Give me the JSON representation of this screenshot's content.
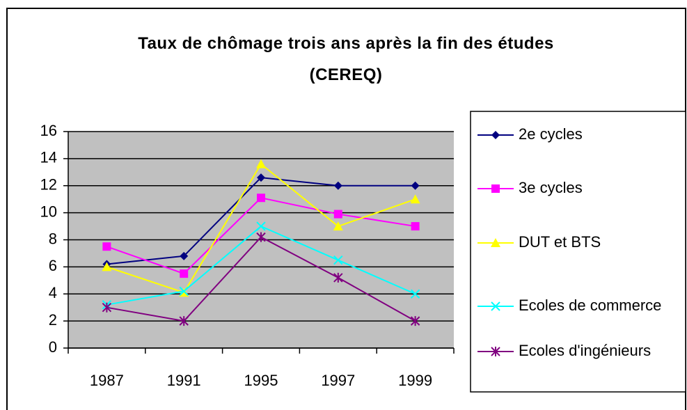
{
  "chart_data": {
    "type": "line",
    "title": "Taux de chômage trois ans après la fin des études (CEREQ)",
    "categories": [
      "1987",
      "1991",
      "1995",
      "1997",
      "1999"
    ],
    "series": [
      {
        "name": "2e cycles",
        "color": "#000080",
        "marker": "diamond",
        "values": [
          6.2,
          6.8,
          12.6,
          12,
          12
        ]
      },
      {
        "name": "3e cycles",
        "color": "#ff00ff",
        "marker": "square",
        "values": [
          7.5,
          5.5,
          11.1,
          9.9,
          9
        ]
      },
      {
        "name": "DUT et BTS",
        "color": "#ffff00",
        "marker": "triangle",
        "values": [
          6,
          4.1,
          13.6,
          9,
          11
        ]
      },
      {
        "name": "Ecoles de commerce",
        "color": "#00ffff",
        "marker": "x",
        "values": [
          3.2,
          4.2,
          9,
          6.5,
          4
        ]
      },
      {
        "name": "Ecoles d'ingénieurs",
        "color": "#800080",
        "marker": "star",
        "values": [
          3,
          2,
          8.2,
          5.2,
          2
        ]
      }
    ],
    "ylim": [
      0,
      16
    ],
    "yticks": [
      0,
      2,
      4,
      6,
      8,
      10,
      12,
      14,
      16
    ],
    "grid": true,
    "legend": "right"
  }
}
